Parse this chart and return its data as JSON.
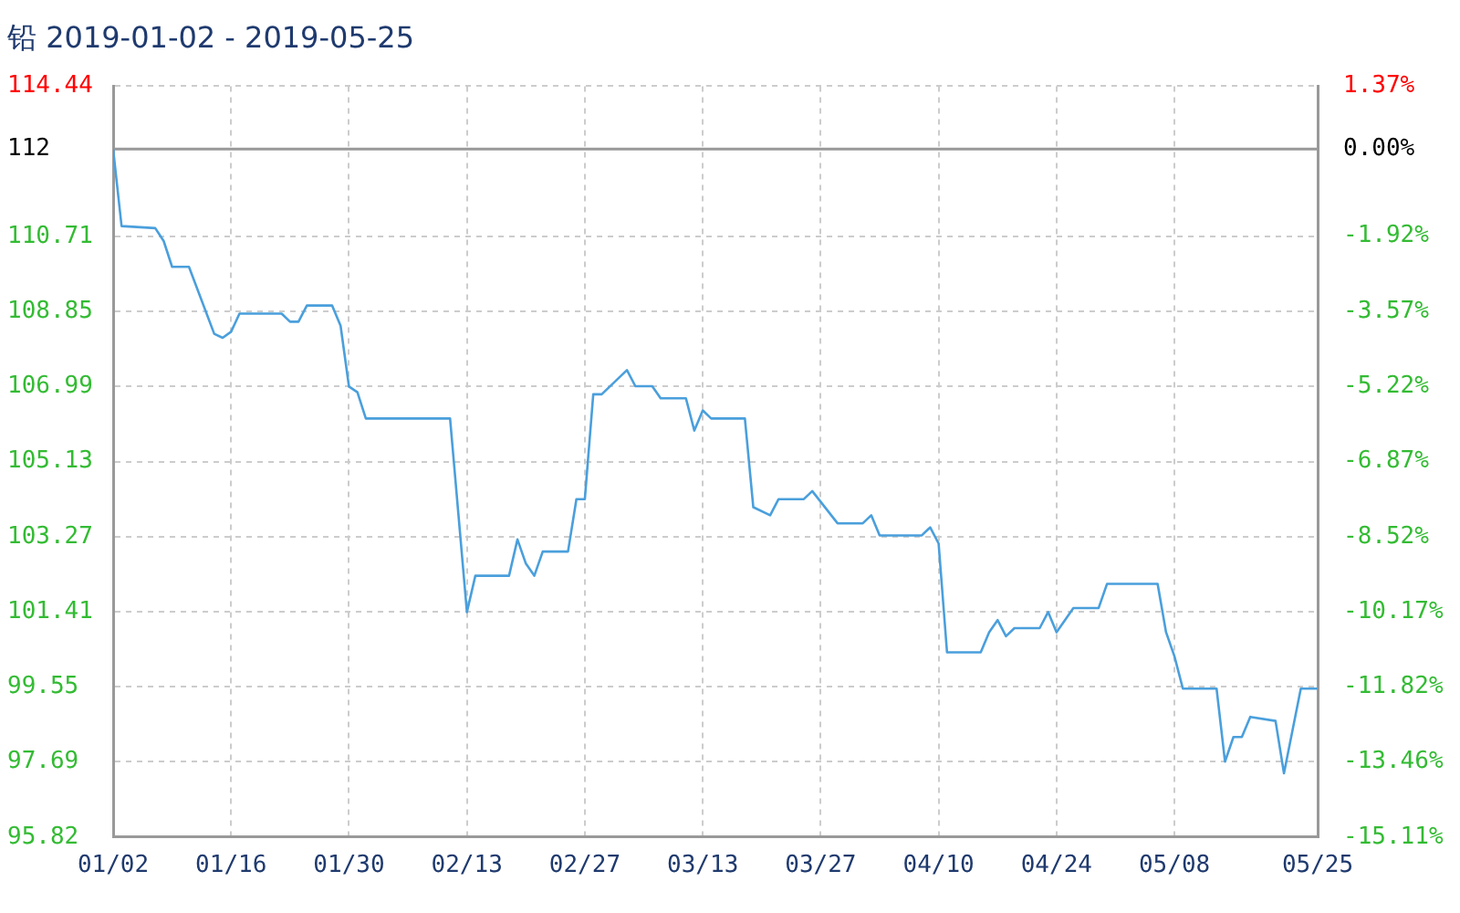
{
  "chart_data": {
    "type": "line",
    "title": "铅 2019-01-02 - 2019-05-25",
    "x": [
      "2019-01-02",
      "2019-01-03",
      "2019-01-07",
      "2019-01-08",
      "2019-01-09",
      "2019-01-11",
      "2019-01-14",
      "2019-01-15",
      "2019-01-16",
      "2019-01-17",
      "2019-01-22",
      "2019-01-23",
      "2019-01-24",
      "2019-01-25",
      "2019-01-28",
      "2019-01-29",
      "2019-01-30",
      "2019-01-31",
      "2019-02-01",
      "2019-02-11",
      "2019-02-12",
      "2019-02-13",
      "2019-02-14",
      "2019-02-18",
      "2019-02-19",
      "2019-02-20",
      "2019-02-21",
      "2019-02-22",
      "2019-02-25",
      "2019-02-26",
      "2019-02-27",
      "2019-02-28",
      "2019-03-01",
      "2019-03-04",
      "2019-03-05",
      "2019-03-07",
      "2019-03-08",
      "2019-03-11",
      "2019-03-12",
      "2019-03-13",
      "2019-03-14",
      "2019-03-18",
      "2019-03-19",
      "2019-03-21",
      "2019-03-22",
      "2019-03-25",
      "2019-03-26",
      "2019-03-29",
      "2019-04-01",
      "2019-04-02",
      "2019-04-03",
      "2019-04-08",
      "2019-04-09",
      "2019-04-10",
      "2019-04-11",
      "2019-04-15",
      "2019-04-16",
      "2019-04-17",
      "2019-04-18",
      "2019-04-19",
      "2019-04-22",
      "2019-04-23",
      "2019-04-24",
      "2019-04-26",
      "2019-04-29",
      "2019-04-30",
      "2019-05-06",
      "2019-05-07",
      "2019-05-08",
      "2019-05-09",
      "2019-05-13",
      "2019-05-14",
      "2019-05-15",
      "2019-05-16",
      "2019-05-17",
      "2019-05-20",
      "2019-05-21",
      "2019-05-23",
      "2019-05-25"
    ],
    "series": [
      {
        "color": "#4a9fdc",
        "values": [
          112.88,
          110.97,
          110.92,
          110.6,
          109.96,
          109.96,
          108.3,
          108.2,
          108.35,
          108.8,
          108.8,
          108.6,
          108.6,
          109.0,
          109.0,
          108.5,
          106.99,
          106.85,
          106.2,
          106.2,
          103.8,
          101.4,
          102.3,
          102.3,
          103.2,
          102.6,
          102.3,
          102.9,
          102.9,
          104.2,
          104.2,
          106.8,
          106.8,
          107.4,
          107.0,
          107.0,
          106.7,
          106.7,
          105.9,
          106.4,
          106.2,
          106.2,
          104.0,
          103.8,
          104.2,
          104.2,
          104.4,
          103.6,
          103.6,
          103.8,
          103.3,
          103.3,
          103.5,
          103.1,
          100.4,
          100.4,
          100.9,
          101.2,
          100.8,
          101.0,
          101.0,
          101.4,
          100.9,
          101.5,
          101.5,
          102.1,
          102.1,
          100.9,
          100.3,
          99.5,
          99.5,
          97.69,
          98.3,
          98.3,
          98.8,
          98.7,
          97.4,
          99.5,
          99.5
        ]
      }
    ],
    "xlim": [
      "2019-01-02",
      "2019-05-25"
    ],
    "xticks": [
      {
        "value": "2019-01-02",
        "label": "01/02"
      },
      {
        "value": "2019-01-16",
        "label": "01/16"
      },
      {
        "value": "2019-01-30",
        "label": "01/30"
      },
      {
        "value": "2019-02-13",
        "label": "02/13"
      },
      {
        "value": "2019-02-27",
        "label": "02/27"
      },
      {
        "value": "2019-03-13",
        "label": "03/13"
      },
      {
        "value": "2019-03-27",
        "label": "03/27"
      },
      {
        "value": "2019-04-10",
        "label": "04/10"
      },
      {
        "value": "2019-04-24",
        "label": "04/24"
      },
      {
        "value": "2019-05-08",
        "label": "05/08"
      },
      {
        "value": "2019-05-25",
        "label": "05/25"
      }
    ],
    "ylim": [
      95.82,
      114.44
    ],
    "yticks": [
      95.82,
      97.69,
      99.55,
      101.41,
      103.27,
      105.13,
      106.99,
      108.85,
      110.71,
      114.44
    ],
    "y2lim": [
      -15.11,
      1.37
    ],
    "y2ticks": [
      {
        "value": -15.11,
        "label": "-15.11%"
      },
      {
        "value": -13.46,
        "label": "-13.46%"
      },
      {
        "value": -11.82,
        "label": "-11.82%"
      },
      {
        "value": -10.17,
        "label": "-10.17%"
      },
      {
        "value": -8.52,
        "label": "-8.52%"
      },
      {
        "value": -6.87,
        "label": "-6.87%"
      },
      {
        "value": -5.22,
        "label": "-5.22%"
      },
      {
        "value": -3.57,
        "label": "-3.57%"
      },
      {
        "value": -1.92,
        "label": "-1.92%"
      },
      {
        "value": 0,
        "label": "0.00%"
      },
      {
        "value": 1.37,
        "label": "1.37%"
      }
    ],
    "ref_lines": [
      {
        "axis": "y",
        "value": 112.88,
        "color": "#999999"
      }
    ],
    "annotations": [
      "112"
    ],
    "grid": true,
    "legend": false,
    "marker": "none",
    "line_style": "solid"
  }
}
